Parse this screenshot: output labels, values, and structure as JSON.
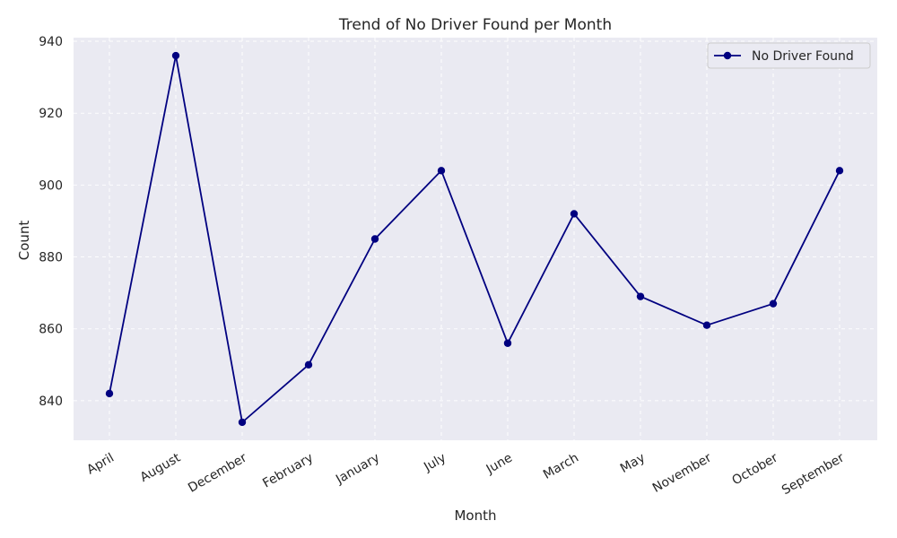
{
  "chart_data": {
    "type": "line",
    "title": "Trend of No Driver Found per Month",
    "xlabel": "Month",
    "ylabel": "Count",
    "categories": [
      "April",
      "August",
      "December",
      "February",
      "January",
      "July",
      "June",
      "March",
      "May",
      "November",
      "October",
      "September"
    ],
    "series": [
      {
        "name": "No Driver Found",
        "values": [
          842,
          936,
          834,
          850,
          885,
          904,
          856,
          892,
          869,
          861,
          867,
          904
        ],
        "color": "#000080",
        "marker": "circle"
      }
    ],
    "ylim": [
      829,
      941
    ],
    "yticks": [
      840,
      860,
      880,
      900,
      920,
      940
    ],
    "grid": true,
    "grid_style": "dashed",
    "legend_position": "top-right",
    "background_color": "#eaeaf2",
    "x_tick_rotation": -30
  }
}
